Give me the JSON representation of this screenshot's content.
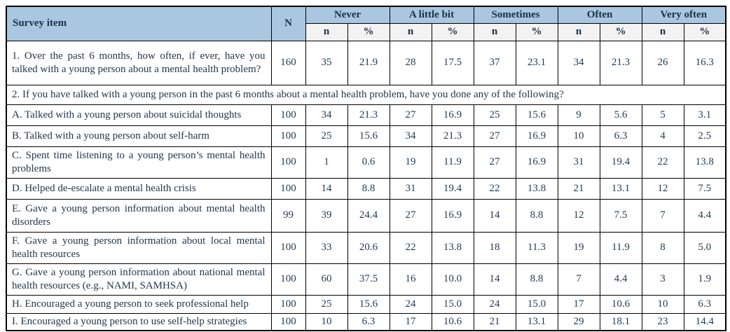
{
  "table": {
    "columns": {
      "survey_item": "Survey item",
      "n_total": "N",
      "groups": [
        "Never",
        "A little bit",
        "Sometimes",
        "Often",
        "Very often"
      ],
      "sub_n": "n",
      "sub_pct": "%"
    },
    "colors": {
      "header_blue": "#a9c7e0",
      "subheader_gray": "#f2f2f2",
      "border": "#000000",
      "text": "#23374d"
    },
    "rows": [
      {
        "type": "data",
        "item": "1. Over the past 6 months, how often, if ever, have you talked with a young person about a mental health problem?",
        "n": "160",
        "cells": [
          "35",
          "21.9",
          "28",
          "17.5",
          "37",
          "23.1",
          "34",
          "21.3",
          "26",
          "16.3"
        ]
      },
      {
        "type": "section",
        "item": "2. If you have talked with a young person in the past 6 months about a mental health problem, have you done any of the following?"
      },
      {
        "type": "data",
        "item": "A. Talked with a young person about suicidal thoughts",
        "n": "100",
        "cells": [
          "34",
          "21.3",
          "27",
          "16.9",
          "25",
          "15.6",
          "9",
          "5.6",
          "5",
          "3.1"
        ]
      },
      {
        "type": "data",
        "item": "B. Talked with a young person about self-harm",
        "n": "100",
        "cells": [
          "25",
          "15.6",
          "34",
          "21.3",
          "27",
          "16.9",
          "10",
          "6.3",
          "4",
          "2.5"
        ]
      },
      {
        "type": "data",
        "item": "C. Spent time listening to a young person’s mental health problems",
        "n": "100",
        "cells": [
          "1",
          "0.6",
          "19",
          "11.9",
          "27",
          "16.9",
          "31",
          "19.4",
          "22",
          "13.8"
        ]
      },
      {
        "type": "data",
        "item": "D. Helped de-escalate a mental health crisis",
        "n": "100",
        "cells": [
          "14",
          "8.8",
          "31",
          "19.4",
          "22",
          "13.8",
          "21",
          "13.1",
          "12",
          "7.5"
        ]
      },
      {
        "type": "data",
        "item": "E. Gave a young person information about mental health disorders",
        "n": "99",
        "cells": [
          "39",
          "24.4",
          "27",
          "16.9",
          "14",
          "8.8",
          "12",
          "7.5",
          "7",
          "4.4"
        ]
      },
      {
        "type": "data",
        "item": "F. Gave a young person information about local mental health resources",
        "n": "100",
        "cells": [
          "33",
          "20.6",
          "22",
          "13.8",
          "18",
          "11.3",
          "19",
          "11.9",
          "8",
          "5.0"
        ]
      },
      {
        "type": "data",
        "item": "G. Gave a young person information about national mental health resources (e.g., NAMI, SAMHSA)",
        "n": "100",
        "cells": [
          "60",
          "37.5",
          "16",
          "10.0",
          "14",
          "8.8",
          "7",
          "4.4",
          "3",
          "1.9"
        ]
      },
      {
        "type": "data",
        "item": "H. Encouraged a young person to seek professional help",
        "n": "100",
        "cells": [
          "25",
          "15.6",
          "24",
          "15.0",
          "24",
          "15.0",
          "17",
          "10.6",
          "10",
          "6.3"
        ]
      },
      {
        "type": "data",
        "item": "I. Encouraged a young person to use self-help strategies",
        "n": "100",
        "cells": [
          "10",
          "6.3",
          "17",
          "10.6",
          "21",
          "13.1",
          "29",
          "18.1",
          "23",
          "14.4"
        ]
      }
    ]
  }
}
